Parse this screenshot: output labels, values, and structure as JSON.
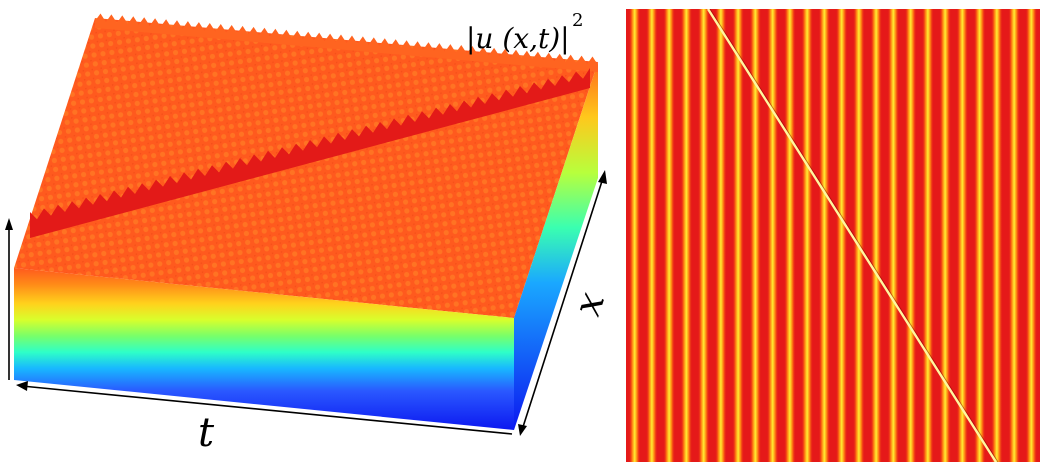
{
  "surface_plot": {
    "z_label": "|u (x,t)|",
    "z_label_exponent": "2",
    "t_label": "t",
    "x_label": "x",
    "colormap": [
      "#0a1bff",
      "#1e6cff",
      "#18c8ff",
      "#3dffb4",
      "#a8ff3c",
      "#ffef1c",
      "#ff9a18",
      "#ff6a1c",
      "#ff4a1a",
      "#e8161a"
    ],
    "surface_color": "#ff5a1e",
    "defect_color": "#e31a18"
  },
  "density_map": {
    "stripe_colors": {
      "background": "#e51919",
      "edge": "#ff7a10",
      "core": "#ffee32",
      "defect": "#fff6a0"
    }
  }
}
